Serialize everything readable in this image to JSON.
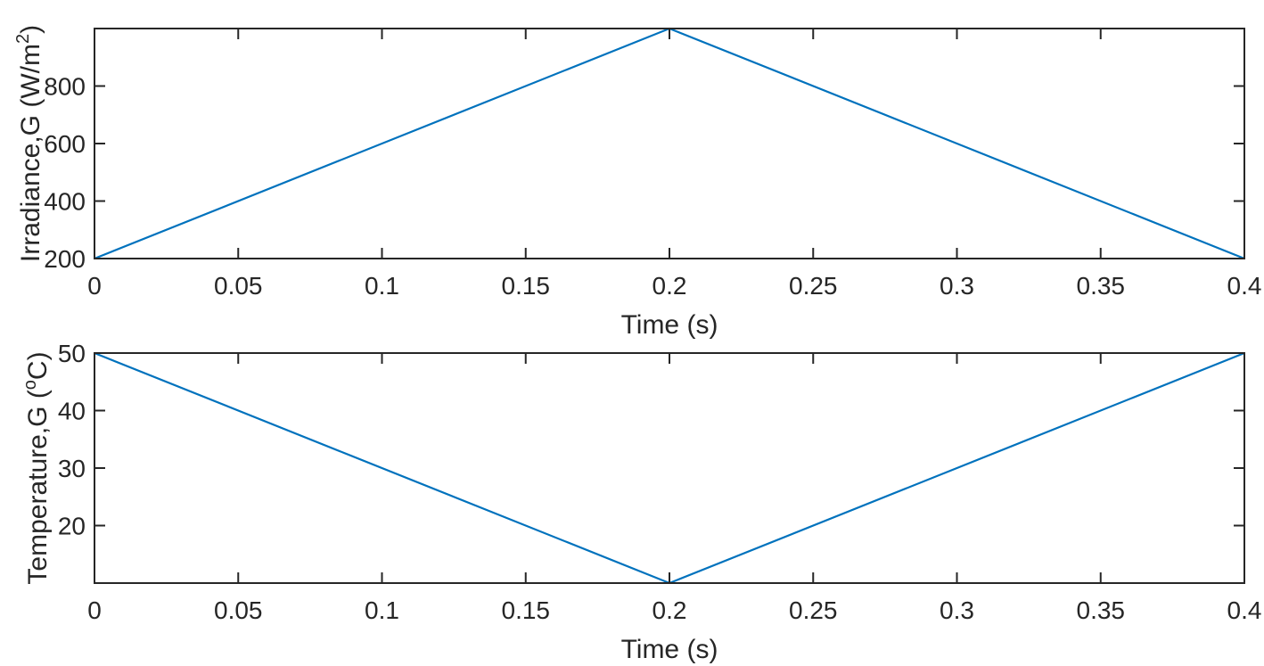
{
  "chart_data": [
    {
      "type": "line",
      "xlabel": "Time (s)",
      "ylabel": "Irradiance,G (W/m",
      "ylabel_sup": "2",
      "ylabel_tail": ")",
      "xlim": [
        0,
        0.4
      ],
      "ylim": [
        200,
        1000
      ],
      "xticks": [
        0,
        0.05,
        0.1,
        0.15,
        0.2,
        0.25,
        0.3,
        0.35,
        0.4
      ],
      "xtick_labels": [
        "0",
        "0.05",
        "0.1",
        "0.15",
        "0.2",
        "0.25",
        "0.3",
        "0.35",
        "0.4"
      ],
      "yticks": [
        200,
        400,
        600,
        800
      ],
      "ytick_labels": [
        "200",
        "400",
        "600",
        "800"
      ],
      "grid": false,
      "series": [
        {
          "color": "#0072BD",
          "x": [
            0,
            0.2,
            0.4
          ],
          "y": [
            200,
            1000,
            200
          ]
        }
      ]
    },
    {
      "type": "line",
      "xlabel": "Time (s)",
      "ylabel": "Temperature,G (",
      "ylabel_sup": "o",
      "ylabel_tail": "C)",
      "xlim": [
        0,
        0.4
      ],
      "ylim": [
        10,
        50
      ],
      "xticks": [
        0,
        0.05,
        0.1,
        0.15,
        0.2,
        0.25,
        0.3,
        0.35,
        0.4
      ],
      "xtick_labels": [
        "0",
        "0.05",
        "0.1",
        "0.15",
        "0.2",
        "0.25",
        "0.3",
        "0.35",
        "0.4"
      ],
      "yticks": [
        20,
        30,
        40,
        50
      ],
      "ytick_labels": [
        "20",
        "30",
        "40",
        "50"
      ],
      "grid": false,
      "series": [
        {
          "color": "#0072BD",
          "x": [
            0,
            0.2,
            0.4
          ],
          "y": [
            50,
            10,
            50
          ]
        }
      ]
    }
  ]
}
